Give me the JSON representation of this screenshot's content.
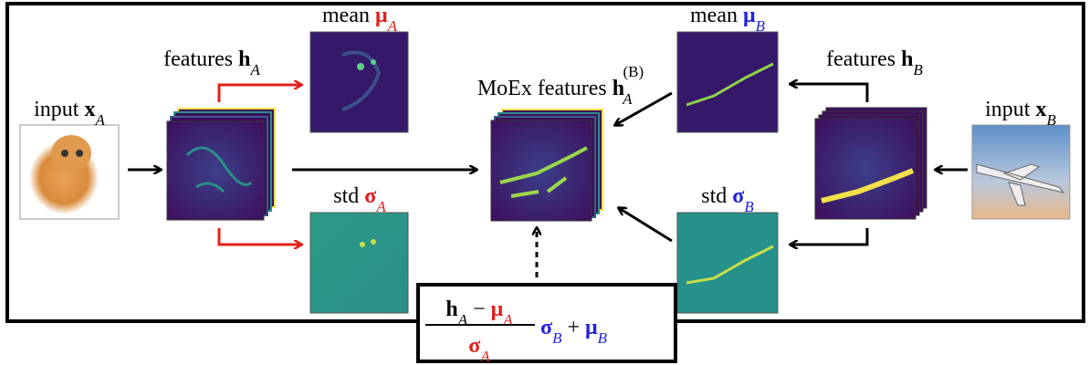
{
  "input_a": {
    "word": "input",
    "symbol": "x",
    "sub": "A"
  },
  "features_a": {
    "word": "features",
    "symbol": "h",
    "sub": "A"
  },
  "mean_a": {
    "word": "mean",
    "symbol": "μ",
    "sub": "A"
  },
  "std_a": {
    "word": "std",
    "symbol": "σ",
    "sub": "A"
  },
  "moex": {
    "word": "MoEx features",
    "symbol": "h",
    "sub": "A",
    "sup": "(B)"
  },
  "mean_b": {
    "word": "mean",
    "symbol": "μ",
    "sub": "B"
  },
  "std_b": {
    "word": "std",
    "symbol": "σ",
    "sub": "B"
  },
  "features_b": {
    "word": "features",
    "symbol": "h",
    "sub": "B"
  },
  "input_b": {
    "word": "input",
    "symbol": "x",
    "sub": "B"
  },
  "formula": {
    "num_h": "h",
    "num_h_sub": "A",
    "minus": "−",
    "num_mu": "μ",
    "num_mu_sub": "A",
    "den_sigma": "σ",
    "den_sigma_sub": "A",
    "sigma": "σ",
    "sigma_sub": "B",
    "plus": "+",
    "mu": "μ",
    "mu_sub": "B"
  }
}
